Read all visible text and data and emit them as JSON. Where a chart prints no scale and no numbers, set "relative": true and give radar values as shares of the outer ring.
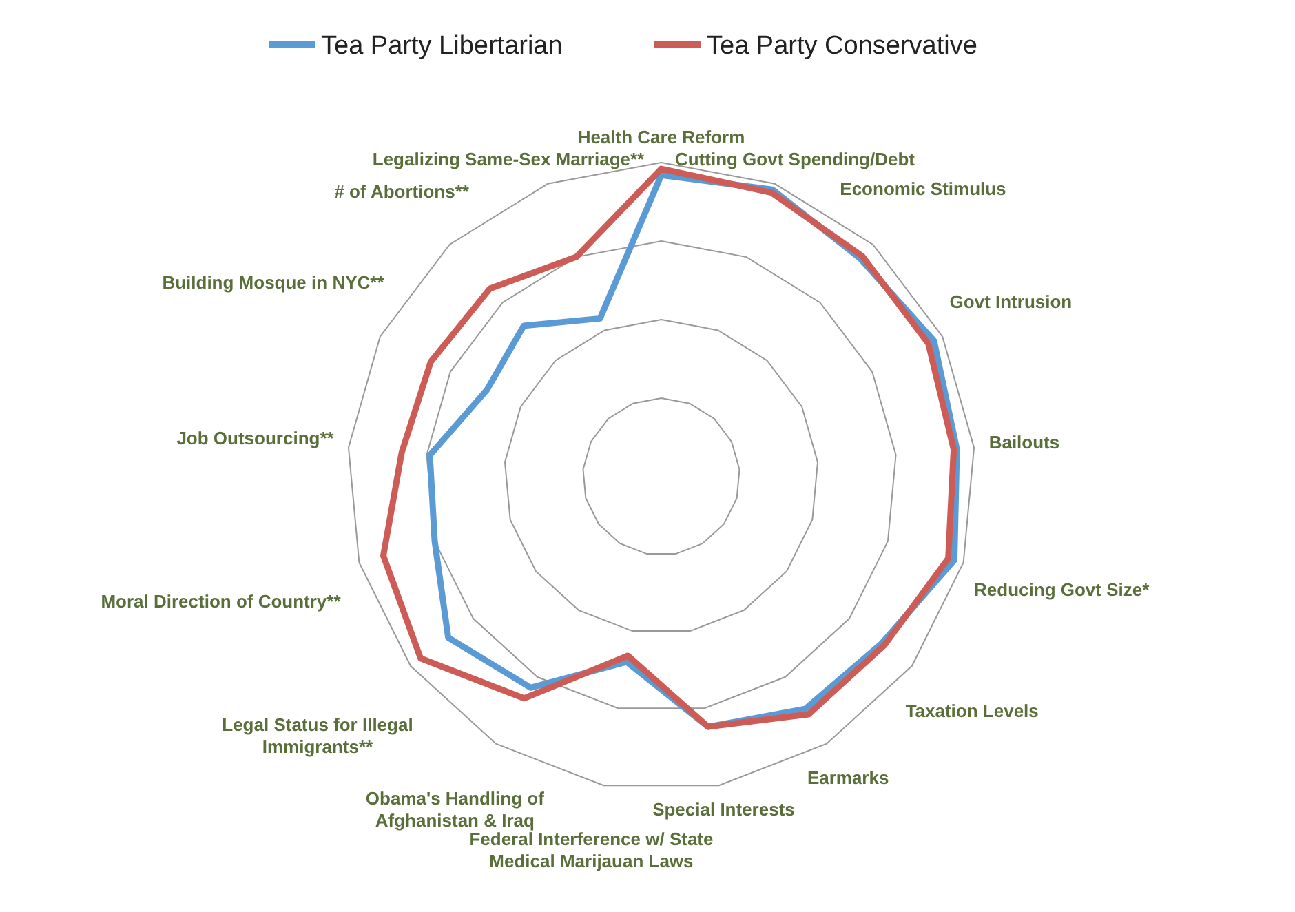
{
  "chart_data": {
    "type": "radar",
    "relative": true,
    "grid": true,
    "legend": "top",
    "line_style": "solid",
    "marker": "none",
    "categories": [
      "Health Care Reform",
      "Cutting Govt Spending/Debt",
      "Economic Stimulus",
      "Govt Intrusion",
      "Bailouts",
      "Reducing Govt Size*",
      "Taxation Levels",
      "Earmarks",
      "Special Interests",
      "Federal Interference w/ State\nMedical Marijauan Laws",
      "Obama's Handling of\nAfghanistan & Iraq",
      "Legal Status for Illegal\nImmigrants**",
      "Moral Direction of Country**",
      "Job Outsourcing**",
      "Building Mosque in NYC**",
      "# of Abortions**",
      "Legalizing Same-Sex Marriage**"
    ],
    "series": [
      {
        "name": "Tea Party Libertarian",
        "color": "#5b9bd5",
        "values": [
          0.96,
          0.98,
          0.94,
          0.97,
          0.945,
          0.97,
          0.88,
          0.87,
          0.81,
          0.6,
          0.79,
          0.85,
          0.75,
          0.74,
          0.62,
          0.65,
          0.54
        ]
      },
      {
        "name": "Tea Party Conservative",
        "color": "#cd5c57",
        "values": [
          0.98,
          0.97,
          0.95,
          0.95,
          0.935,
          0.95,
          0.89,
          0.89,
          0.81,
          0.58,
          0.83,
          0.96,
          0.92,
          0.83,
          0.82,
          0.81,
          0.75
        ]
      }
    ]
  }
}
